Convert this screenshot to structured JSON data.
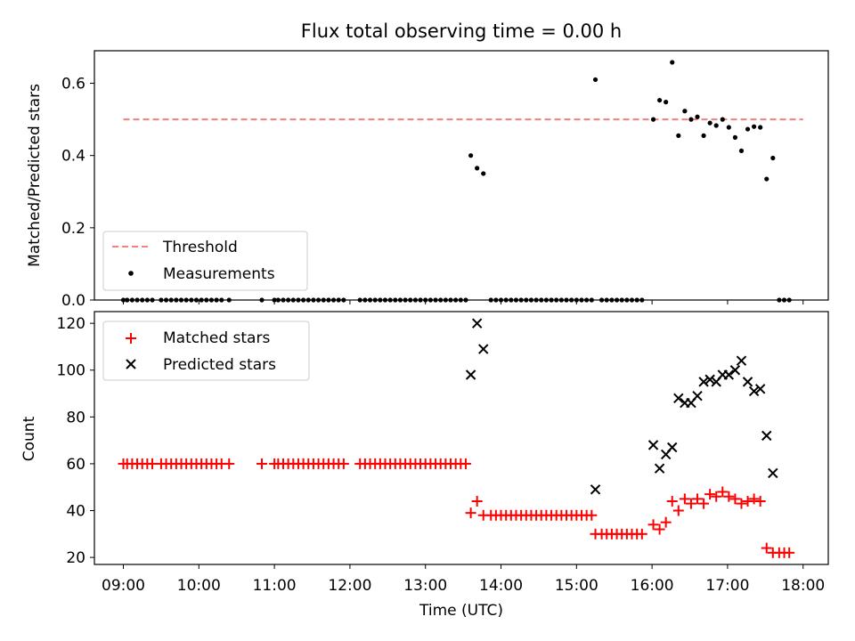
{
  "chart_data": [
    {
      "type": "scatter",
      "title": "Flux total observing time = 0.00 h",
      "xlabel": "",
      "ylabel": "Matched/Predicted stars",
      "xlim": [
        "08:37",
        "18:20"
      ],
      "ylim": [
        0,
        0.69
      ],
      "yticks": [
        0.0,
        0.2,
        0.4,
        0.6
      ],
      "ytick_labels": [
        "0.0",
        "0.2",
        "0.4",
        "0.6"
      ],
      "grid": false,
      "legend_position": "lower-left",
      "threshold": {
        "name": "Threshold",
        "value": 0.5,
        "x_range": [
          "09:00",
          "18:00"
        ],
        "color": "#f47f7f"
      },
      "series": [
        {
          "name": "Measurements",
          "color": "#000000",
          "marker": "dot",
          "points": [
            [
              "09:00",
              0
            ],
            [
              "09:03",
              0
            ],
            [
              "09:07",
              0
            ],
            [
              "09:11",
              0
            ],
            [
              "09:15",
              0
            ],
            [
              "09:19",
              0
            ],
            [
              "09:23",
              0
            ],
            [
              "09:30",
              0
            ],
            [
              "09:34",
              0
            ],
            [
              "09:38",
              0
            ],
            [
              "09:42",
              0
            ],
            [
              "09:46",
              0
            ],
            [
              "09:50",
              0
            ],
            [
              "09:54",
              0
            ],
            [
              "09:58",
              0
            ],
            [
              "10:02",
              0
            ],
            [
              "10:06",
              0
            ],
            [
              "10:10",
              0
            ],
            [
              "10:14",
              0
            ],
            [
              "10:18",
              0
            ],
            [
              "10:24",
              0
            ],
            [
              "10:50",
              0
            ],
            [
              "11:00",
              0
            ],
            [
              "11:03",
              0
            ],
            [
              "11:07",
              0
            ],
            [
              "11:11",
              0
            ],
            [
              "11:15",
              0
            ],
            [
              "11:19",
              0
            ],
            [
              "11:23",
              0
            ],
            [
              "11:27",
              0
            ],
            [
              "11:31",
              0
            ],
            [
              "11:35",
              0
            ],
            [
              "11:39",
              0
            ],
            [
              "11:43",
              0
            ],
            [
              "11:47",
              0
            ],
            [
              "11:51",
              0
            ],
            [
              "11:55",
              0
            ],
            [
              "12:08",
              0
            ],
            [
              "12:12",
              0
            ],
            [
              "12:16",
              0
            ],
            [
              "12:20",
              0
            ],
            [
              "12:24",
              0
            ],
            [
              "12:28",
              0
            ],
            [
              "12:32",
              0
            ],
            [
              "12:36",
              0
            ],
            [
              "12:40",
              0
            ],
            [
              "12:44",
              0
            ],
            [
              "12:48",
              0
            ],
            [
              "12:52",
              0
            ],
            [
              "12:56",
              0
            ],
            [
              "13:00",
              0
            ],
            [
              "13:04",
              0
            ],
            [
              "13:08",
              0
            ],
            [
              "13:12",
              0
            ],
            [
              "13:16",
              0
            ],
            [
              "13:20",
              0
            ],
            [
              "13:24",
              0
            ],
            [
              "13:28",
              0
            ],
            [
              "13:32",
              0
            ],
            [
              "13:36",
              0.4
            ],
            [
              "13:41",
              0.365
            ],
            [
              "13:46",
              0.35
            ],
            [
              "13:52",
              0
            ],
            [
              "13:56",
              0
            ],
            [
              "14:00",
              0
            ],
            [
              "14:04",
              0
            ],
            [
              "14:08",
              0
            ],
            [
              "14:12",
              0
            ],
            [
              "14:16",
              0
            ],
            [
              "14:20",
              0
            ],
            [
              "14:24",
              0
            ],
            [
              "14:28",
              0
            ],
            [
              "14:32",
              0
            ],
            [
              "14:36",
              0
            ],
            [
              "14:40",
              0
            ],
            [
              "14:44",
              0
            ],
            [
              "14:48",
              0
            ],
            [
              "14:52",
              0
            ],
            [
              "14:56",
              0
            ],
            [
              "15:00",
              0
            ],
            [
              "15:04",
              0
            ],
            [
              "15:08",
              0
            ],
            [
              "15:12",
              0
            ],
            [
              "15:15",
              0.61
            ],
            [
              "15:20",
              0
            ],
            [
              "15:24",
              0
            ],
            [
              "15:28",
              0
            ],
            [
              "15:32",
              0
            ],
            [
              "15:36",
              0
            ],
            [
              "15:40",
              0
            ],
            [
              "15:44",
              0
            ],
            [
              "15:48",
              0
            ],
            [
              "15:52",
              0
            ],
            [
              "16:01",
              0.5
            ],
            [
              "16:06",
              0.553
            ],
            [
              "16:11",
              0.548
            ],
            [
              "16:16",
              0.658
            ],
            [
              "16:21",
              0.455
            ],
            [
              "16:26",
              0.523
            ],
            [
              "16:31",
              0.5
            ],
            [
              "16:36",
              0.507
            ],
            [
              "16:41",
              0.455
            ],
            [
              "16:46",
              0.49
            ],
            [
              "16:51",
              0.483
            ],
            [
              "16:56",
              0.5
            ],
            [
              "17:01",
              0.478
            ],
            [
              "17:06",
              0.45
            ],
            [
              "17:11",
              0.413
            ],
            [
              "17:16",
              0.473
            ],
            [
              "17:21",
              0.48
            ],
            [
              "17:26",
              0.478
            ],
            [
              "17:31",
              0.335
            ],
            [
              "17:36",
              0.393
            ],
            [
              "17:41",
              0
            ],
            [
              "17:45",
              0
            ],
            [
              "17:49",
              0
            ]
          ]
        }
      ]
    },
    {
      "type": "scatter",
      "title": "",
      "xlabel": "Time (UTC)",
      "ylabel": "Count",
      "xlim": [
        "08:37",
        "18:20"
      ],
      "ylim": [
        17,
        125
      ],
      "yticks": [
        20,
        40,
        60,
        80,
        100,
        120
      ],
      "ytick_labels": [
        "20",
        "40",
        "60",
        "80",
        "100",
        "120"
      ],
      "xticks": [
        "09:00",
        "10:00",
        "11:00",
        "12:00",
        "13:00",
        "14:00",
        "15:00",
        "16:00",
        "17:00",
        "18:00"
      ],
      "xtick_labels": [
        "09:00",
        "10:00",
        "11:00",
        "12:00",
        "13:00",
        "14:00",
        "15:00",
        "16:00",
        "17:00",
        "18:00"
      ],
      "grid": false,
      "legend_position": "upper-left",
      "series": [
        {
          "name": "Matched stars",
          "color": "#ff0000",
          "marker": "plus",
          "points": [
            [
              "09:00",
              60
            ],
            [
              "09:03",
              60
            ],
            [
              "09:07",
              60
            ],
            [
              "09:11",
              60
            ],
            [
              "09:15",
              60
            ],
            [
              "09:19",
              60
            ],
            [
              "09:23",
              60
            ],
            [
              "09:30",
              60
            ],
            [
              "09:34",
              60
            ],
            [
              "09:38",
              60
            ],
            [
              "09:42",
              60
            ],
            [
              "09:46",
              60
            ],
            [
              "09:50",
              60
            ],
            [
              "09:54",
              60
            ],
            [
              "09:58",
              60
            ],
            [
              "10:02",
              60
            ],
            [
              "10:06",
              60
            ],
            [
              "10:10",
              60
            ],
            [
              "10:14",
              60
            ],
            [
              "10:18",
              60
            ],
            [
              "10:24",
              60
            ],
            [
              "10:50",
              60
            ],
            [
              "11:00",
              60
            ],
            [
              "11:03",
              60
            ],
            [
              "11:07",
              60
            ],
            [
              "11:11",
              60
            ],
            [
              "11:15",
              60
            ],
            [
              "11:19",
              60
            ],
            [
              "11:23",
              60
            ],
            [
              "11:27",
              60
            ],
            [
              "11:31",
              60
            ],
            [
              "11:35",
              60
            ],
            [
              "11:39",
              60
            ],
            [
              "11:43",
              60
            ],
            [
              "11:47",
              60
            ],
            [
              "11:51",
              60
            ],
            [
              "11:55",
              60
            ],
            [
              "12:08",
              60
            ],
            [
              "12:12",
              60
            ],
            [
              "12:16",
              60
            ],
            [
              "12:20",
              60
            ],
            [
              "12:24",
              60
            ],
            [
              "12:28",
              60
            ],
            [
              "12:32",
              60
            ],
            [
              "12:36",
              60
            ],
            [
              "12:40",
              60
            ],
            [
              "12:44",
              60
            ],
            [
              "12:48",
              60
            ],
            [
              "12:52",
              60
            ],
            [
              "12:56",
              60
            ],
            [
              "13:00",
              60
            ],
            [
              "13:04",
              60
            ],
            [
              "13:08",
              60
            ],
            [
              "13:12",
              60
            ],
            [
              "13:16",
              60
            ],
            [
              "13:20",
              60
            ],
            [
              "13:24",
              60
            ],
            [
              "13:28",
              60
            ],
            [
              "13:32",
              60
            ],
            [
              "13:36",
              39
            ],
            [
              "13:41",
              44
            ],
            [
              "13:46",
              38
            ],
            [
              "13:52",
              38
            ],
            [
              "13:56",
              38
            ],
            [
              "14:00",
              38
            ],
            [
              "14:04",
              38
            ],
            [
              "14:08",
              38
            ],
            [
              "14:12",
              38
            ],
            [
              "14:16",
              38
            ],
            [
              "14:20",
              38
            ],
            [
              "14:24",
              38
            ],
            [
              "14:28",
              38
            ],
            [
              "14:32",
              38
            ],
            [
              "14:36",
              38
            ],
            [
              "14:40",
              38
            ],
            [
              "14:44",
              38
            ],
            [
              "14:48",
              38
            ],
            [
              "14:52",
              38
            ],
            [
              "14:56",
              38
            ],
            [
              "15:00",
              38
            ],
            [
              "15:04",
              38
            ],
            [
              "15:08",
              38
            ],
            [
              "15:12",
              38
            ],
            [
              "15:15",
              30
            ],
            [
              "15:20",
              30
            ],
            [
              "15:24",
              30
            ],
            [
              "15:28",
              30
            ],
            [
              "15:32",
              30
            ],
            [
              "15:36",
              30
            ],
            [
              "15:40",
              30
            ],
            [
              "15:44",
              30
            ],
            [
              "15:48",
              30
            ],
            [
              "15:52",
              30
            ],
            [
              "16:01",
              34
            ],
            [
              "16:06",
              32
            ],
            [
              "16:11",
              35
            ],
            [
              "16:16",
              44
            ],
            [
              "16:21",
              40
            ],
            [
              "16:26",
              45
            ],
            [
              "16:31",
              43
            ],
            [
              "16:36",
              45
            ],
            [
              "16:41",
              43
            ],
            [
              "16:46",
              47
            ],
            [
              "16:51",
              46
            ],
            [
              "16:56",
              48
            ],
            [
              "17:01",
              46
            ],
            [
              "17:06",
              45
            ],
            [
              "17:11",
              43
            ],
            [
              "17:16",
              44
            ],
            [
              "17:21",
              45
            ],
            [
              "17:26",
              44
            ],
            [
              "17:31",
              24
            ],
            [
              "17:36",
              22
            ],
            [
              "17:41",
              22
            ],
            [
              "17:45",
              22
            ],
            [
              "17:49",
              22
            ]
          ]
        },
        {
          "name": "Predicted stars",
          "color": "#000000",
          "marker": "x",
          "points": [
            [
              "13:36",
              98
            ],
            [
              "13:41",
              120
            ],
            [
              "13:46",
              109
            ],
            [
              "15:15",
              49
            ],
            [
              "16:01",
              68
            ],
            [
              "16:06",
              58
            ],
            [
              "16:11",
              64
            ],
            [
              "16:16",
              67
            ],
            [
              "16:21",
              88
            ],
            [
              "16:26",
              86
            ],
            [
              "16:31",
              86
            ],
            [
              "16:36",
              89
            ],
            [
              "16:41",
              95
            ],
            [
              "16:46",
              96
            ],
            [
              "16:51",
              95
            ],
            [
              "16:56",
              98
            ],
            [
              "17:01",
              98
            ],
            [
              "17:06",
              100
            ],
            [
              "17:11",
              104
            ],
            [
              "17:16",
              95
            ],
            [
              "17:21",
              91
            ],
            [
              "17:26",
              92
            ],
            [
              "17:31",
              72
            ],
            [
              "17:36",
              56
            ]
          ]
        }
      ]
    }
  ]
}
